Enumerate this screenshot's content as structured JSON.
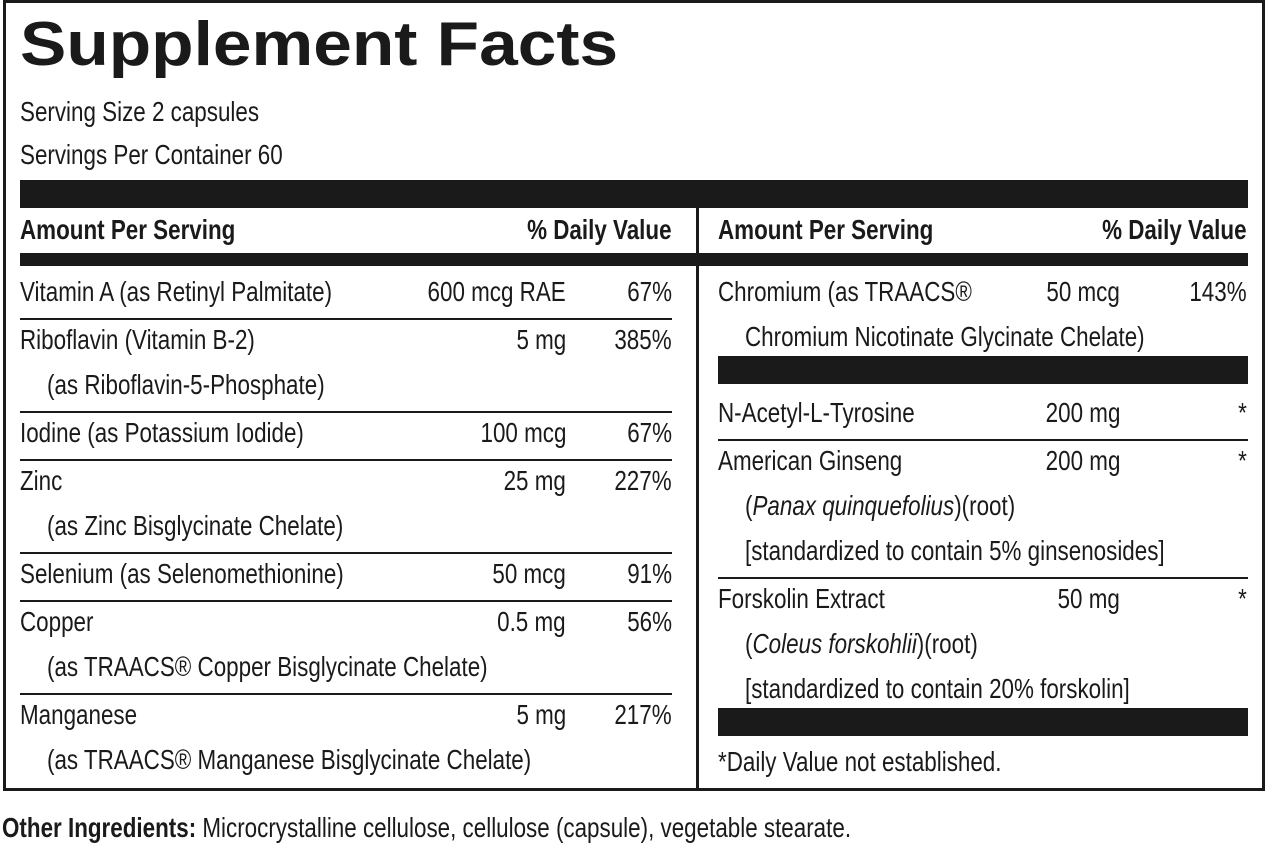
{
  "title": "Supplement Facts",
  "serving_size": "Serving Size 2 capsules",
  "servings_per_container": "Servings Per Container 60",
  "left": {
    "header": {
      "amount": "Amount Per Serving",
      "dv": "% Daily Value"
    },
    "rows": [
      {
        "name": "Vitamin A (as Retinyl Palmitate)",
        "amount": "600 mcg RAE",
        "dv": "67%",
        "notes": []
      },
      {
        "name": "Riboflavin (Vitamin B-2)",
        "amount": "5 mg",
        "dv": "385%",
        "notes": [
          "(as Riboflavin-5-Phosphate)"
        ]
      },
      {
        "name": "Iodine (as Potassium Iodide)",
        "amount": "100 mcg",
        "dv": "67%",
        "notes": []
      },
      {
        "name": "Zinc",
        "amount": "25 mg",
        "dv": "227%",
        "notes": [
          "(as Zinc Bisglycinate Chelate)"
        ]
      },
      {
        "name": "Selenium (as Selenomethionine)",
        "amount": "50 mcg",
        "dv": "91%",
        "notes": []
      },
      {
        "name": "Copper",
        "amount": "0.5 mg",
        "dv": "56%",
        "notes": [
          "(as TRAACS® Copper Bisglycinate Chelate)"
        ]
      },
      {
        "name": "Manganese",
        "amount": "5 mg",
        "dv": "217%",
        "notes": [
          "(as TRAACS® Manganese Bisglycinate Chelate)"
        ]
      }
    ]
  },
  "right": {
    "header": {
      "amount": "Amount Per Serving",
      "dv": "% Daily Value"
    },
    "groups": [
      [
        {
          "name": "Chromium (as TRAACS®",
          "amount": "50 mcg",
          "dv": "143%",
          "notes": [
            "Chromium Nicotinate Glycinate Chelate)"
          ]
        }
      ],
      [
        {
          "name": "N-Acetyl-L-Tyrosine",
          "amount": "200 mg",
          "dv": "*",
          "notes": []
        },
        {
          "name": "American Ginseng",
          "amount": "200 mg",
          "dv": "*",
          "notes": [
            {
              "pre": "(",
              "italic": "Panax quinquefolius",
              "post": ")(root)"
            },
            "[standardized to contain 5% ginsenosides]"
          ]
        },
        {
          "name": "Forskolin Extract",
          "amount": "50 mg",
          "dv": "*",
          "notes": [
            {
              "pre": "(",
              "italic": "Coleus forskohlii",
              "post": ")(root)"
            },
            "[standardized to contain 20% forskolin]"
          ]
        }
      ]
    ],
    "footnote": "*Daily Value not established."
  },
  "other_ingredients": {
    "label": "Other Ingredients:",
    "text": "Microcrystalline cellulose, cellulose (capsule), vegetable stearate."
  }
}
